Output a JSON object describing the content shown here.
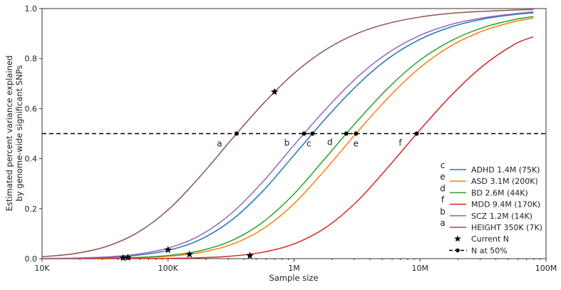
{
  "chart_data": {
    "type": "line",
    "xlabel": "Sample size",
    "ylabel": [
      "Estimated percent variance explained",
      "by genome-wide significant SNPs"
    ],
    "xscale": "log",
    "xlim": [
      10000,
      100000000
    ],
    "ylim": [
      0,
      1
    ],
    "x_ticks": [
      {
        "v": 10000,
        "label": "10K"
      },
      {
        "v": 100000,
        "label": "100K"
      },
      {
        "v": 1000000,
        "label": "1M"
      },
      {
        "v": 10000000,
        "label": "10M"
      },
      {
        "v": 100000000,
        "label": "100M"
      }
    ],
    "y_ticks": [
      {
        "v": 0,
        "label": "0.0"
      },
      {
        "v": 0.2,
        "label": "0.2"
      },
      {
        "v": 0.4,
        "label": "0.4"
      },
      {
        "v": 0.6,
        "label": "0.6"
      },
      {
        "v": 0.8,
        "label": "0.8"
      },
      {
        "v": 1.0,
        "label": "1.0"
      }
    ],
    "grid": false,
    "legend_position": "bottom-right",
    "x": [
      10000,
      17783,
      31623,
      56234,
      100000,
      177828,
      316228,
      562341,
      1000000,
      1778279,
      3162278,
      5623413,
      10000000,
      17782794,
      31622777,
      56234133,
      79432823
    ],
    "series": [
      {
        "name": "ADHD 1.4M (75K)",
        "letter": "c",
        "color": "#1f77b4",
        "n50": 1400000,
        "values": [
          0.0006,
          0.0017,
          0.005,
          0.0135,
          0.033,
          0.075,
          0.152,
          0.269,
          0.414,
          0.56,
          0.693,
          0.801,
          0.877,
          0.927,
          0.958,
          0.976,
          0.983
        ]
      },
      {
        "name": "ASD 3.1M (200K)",
        "letter": "e",
        "color": "#ff7f0e",
        "n50": 3100000,
        "values": [
          0.0001,
          0.0004,
          0.0011,
          0.0034,
          0.0093,
          0.024,
          0.056,
          0.118,
          0.22,
          0.357,
          0.505,
          0.645,
          0.764,
          0.852,
          0.911,
          0.948,
          0.962
        ]
      },
      {
        "name": "BD 2.6M (44K)",
        "letter": "d",
        "color": "#2ca02c",
        "n50": 2600000,
        "values": [
          0.0002,
          0.0005,
          0.0016,
          0.0047,
          0.0125,
          0.031,
          0.071,
          0.145,
          0.259,
          0.403,
          0.549,
          0.684,
          0.794,
          0.872,
          0.924,
          0.956,
          0.968
        ]
      },
      {
        "name": "MDD 9.4M (170K)",
        "letter": "f",
        "color": "#d62728",
        "n50": 9400000,
        "values": [
          0.0,
          0.0,
          0.0001,
          0.0004,
          0.0012,
          0.0037,
          0.01,
          0.0255,
          0.059,
          0.124,
          0.229,
          0.368,
          0.515,
          0.654,
          0.771,
          0.857,
          0.887
        ]
      },
      {
        "name": "SCZ 1.2M (14K)",
        "letter": "b",
        "color": "#9467bd",
        "n50": 1200000,
        "values": [
          0.0008,
          0.0023,
          0.0066,
          0.0174,
          0.042,
          0.092,
          0.18,
          0.306,
          0.454,
          0.597,
          0.725,
          0.824,
          0.893,
          0.937,
          0.963,
          0.979,
          0.987
        ]
      },
      {
        "name": "HEIGHT 350K (7K)",
        "letter": "a",
        "color": "#8c564b",
        "n50": 350000,
        "values": [
          0.0076,
          0.0197,
          0.047,
          0.102,
          0.195,
          0.326,
          0.474,
          0.617,
          0.741,
          0.835,
          0.9,
          0.941,
          0.966,
          0.981,
          0.989,
          0.994,
          0.996
        ]
      }
    ],
    "current_n": [
      {
        "x": 44000,
        "y": 0.003
      },
      {
        "x": 48000,
        "y": 0.004
      },
      {
        "x": 100000,
        "y": 0.035
      },
      {
        "x": 148000,
        "y": 0.017
      },
      {
        "x": 446000,
        "y": 0.012
      },
      {
        "x": 700000,
        "y": 0.667
      }
    ],
    "reference_line": {
      "y": 0.5
    },
    "legend_extra": {
      "current_n": "Current N",
      "n_at_50": "N at 50%"
    }
  }
}
